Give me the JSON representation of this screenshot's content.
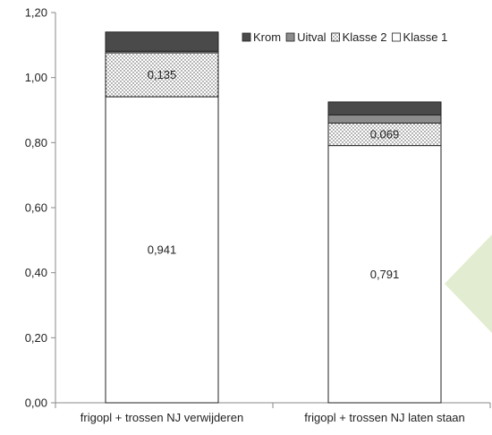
{
  "chart_data": {
    "type": "bar",
    "stacked": true,
    "categories": [
      "frigopl + trossen NJ verwijderen",
      "frigopl + trossen NJ laten staan"
    ],
    "series": [
      {
        "name": "Klasse 1",
        "values": [
          0.941,
          0.791
        ],
        "labels": [
          "0,941",
          "0,791"
        ],
        "color": "#ffffff",
        "pattern": "none"
      },
      {
        "name": "Klasse 2",
        "values": [
          0.135,
          0.069
        ],
        "labels": [
          "0,135",
          "0,069"
        ],
        "color": "#ffffff",
        "pattern": "dots"
      },
      {
        "name": "Uitval",
        "values": [
          0.005,
          0.025
        ],
        "labels": [
          null,
          null
        ],
        "color": "#8c8c8c",
        "pattern": "none"
      },
      {
        "name": "Krom",
        "values": [
          0.059,
          0.04
        ],
        "labels": [
          null,
          null
        ],
        "color": "#4a4a4a",
        "pattern": "none"
      }
    ],
    "legend_order": [
      "Krom",
      "Uitval",
      "Klasse 2",
      "Klasse 1"
    ],
    "ylim": [
      0,
      1.2
    ],
    "yticks": [
      "0,00",
      "0,20",
      "0,40",
      "0,60",
      "0,80",
      "1,00",
      "1,20"
    ],
    "xlabel": "",
    "ylabel": "",
    "title": "",
    "grid": false,
    "legend_position": "top-right"
  }
}
